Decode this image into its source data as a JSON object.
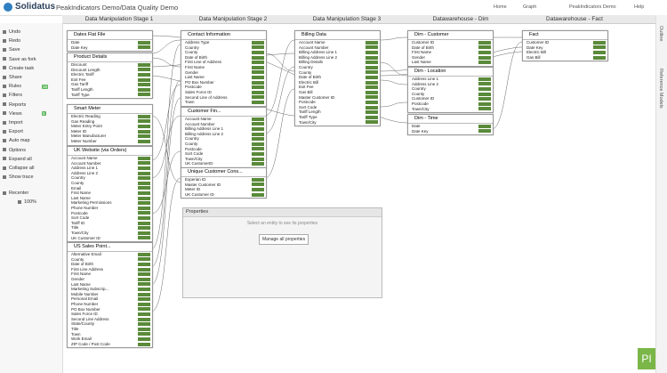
{
  "header": {
    "logo": "Solidatus",
    "title": "PeakIndicators Demo/Data Quality Demo",
    "nav": [
      "Home",
      "Graph",
      "PeakIndicators Demo",
      "Help"
    ]
  },
  "sidebar": {
    "items": [
      {
        "label": "Undo"
      },
      {
        "label": "Redo"
      },
      {
        "label": "Save"
      },
      {
        "label": "Save as fork"
      },
      {
        "label": "Create task"
      },
      {
        "label": "Share"
      },
      {
        "label": "Rules",
        "badge": "18"
      },
      {
        "label": "Filters"
      },
      {
        "label": "Reports"
      },
      {
        "label": "Views",
        "badge": "5"
      },
      {
        "label": "Import"
      },
      {
        "label": "Export"
      },
      {
        "label": "Auto map"
      },
      {
        "label": "Options"
      },
      {
        "label": "Expand all"
      },
      {
        "label": "Collapse all"
      },
      {
        "label": "Show trace"
      },
      {
        "label": "Recenter"
      }
    ],
    "zoom": "100%"
  },
  "stages": [
    "Data Manipulation Stage 1",
    "Data Manipulation Stage 2",
    "Data Manipulation Stage 3",
    "Datawarehouse - Dim",
    "Datawarehouse - Fact"
  ],
  "side_tabs": [
    "Outline",
    "Reference Models"
  ],
  "entities": [
    {
      "title": "Dates Flat File",
      "fields": [
        "Date",
        "Date Key"
      ]
    },
    {
      "title": "Product Details",
      "fields": [
        "Discount",
        "Discount Length",
        "Electric Tariff",
        "Exit Fee",
        "Gas Tariff",
        "Tariff Length",
        "Tariff Type"
      ]
    },
    {
      "title": "Smart Meter",
      "fields": [
        "Electric Reading",
        "Gas Reading",
        "Meter Entry Point",
        "Meter ID",
        "Meter Manufacturer",
        "Meter Number"
      ]
    },
    {
      "title": "UK Website (via Orders)",
      "fields": [
        "Account Name",
        "Account Number",
        "Address Line 1",
        "Address Line 2",
        "Country",
        "County",
        "Email",
        "First Name",
        "Last Name",
        "Marketing Permissions",
        "Phone Number",
        "Postcode",
        "Sort Code",
        "Tariff ID",
        "Title",
        "Town/City",
        "UK Customer ID"
      ]
    },
    {
      "title": "US Sales Point...",
      "fields": [
        "Alternative Email",
        "County",
        "Date of Birth",
        "First Line Address",
        "First Name",
        "Gender",
        "Last Name",
        "Marketing Subscrip...",
        "Mobile Number",
        "Personal Email",
        "Phone Number",
        "PO Box Number",
        "Sales Force ID",
        "Second Line Address",
        "State/County",
        "Title",
        "Town",
        "Work Email",
        "ZIP Code / Post Code"
      ]
    },
    {
      "title": "Contact Information",
      "fields": [
        "Address Type",
        "Country",
        "County",
        "Date of Birth",
        "First Line of Address",
        "First Name",
        "Gender",
        "Last Name",
        "PO Box Number",
        "Postcode",
        "Sales Force ID",
        "Second Line of Address",
        "Town"
      ]
    },
    {
      "title": "Customer Fin...",
      "fields": [
        "Account Name",
        "Account Number",
        "Billing Address Line 1",
        "Billing Address Line 2",
        "Country",
        "County",
        "Postcode",
        "Sort Code",
        "Town/City",
        "UK CustomerID"
      ]
    },
    {
      "title": "Unique Customer Cons...",
      "fields": [
        "Experian ID",
        "Master Customer ID",
        "Meter ID",
        "UK Customer ID"
      ]
    },
    {
      "title": "Billing Data",
      "fields": [
        "Account Name",
        "Account Number",
        "Billing Address Line 1",
        "Billing Address Line 2",
        "Billing Details",
        "Country",
        "County",
        "Date of Birth",
        "Electric Bill",
        "Exit Fee",
        "Gas Bill",
        "Master Customer ID",
        "Postcode",
        "Sort Code",
        "Tariff Length",
        "Tariff Type",
        "Town/City"
      ]
    },
    {
      "title": "Dim - Customer",
      "fields": [
        "Customer ID",
        "Date of Birth",
        "First Name",
        "Gender",
        "Last Name"
      ]
    },
    {
      "title": "Dim - Location",
      "fields": [
        "Address Line 1",
        "Address Line 2",
        "Country",
        "County",
        "Customer ID",
        "Postcode",
        "Town/City"
      ]
    },
    {
      "title": "Dim - Time",
      "fields": [
        "Date",
        "Date Key"
      ]
    },
    {
      "title": "Fact",
      "fields": [
        "Customer ID",
        "Date Key",
        "Electric Bill",
        "Gas Bill"
      ]
    }
  ],
  "properties": {
    "title": "Properties",
    "hint": "Select an entity to see its properties",
    "button": "Manage all properties"
  },
  "logo_badge": "PI"
}
